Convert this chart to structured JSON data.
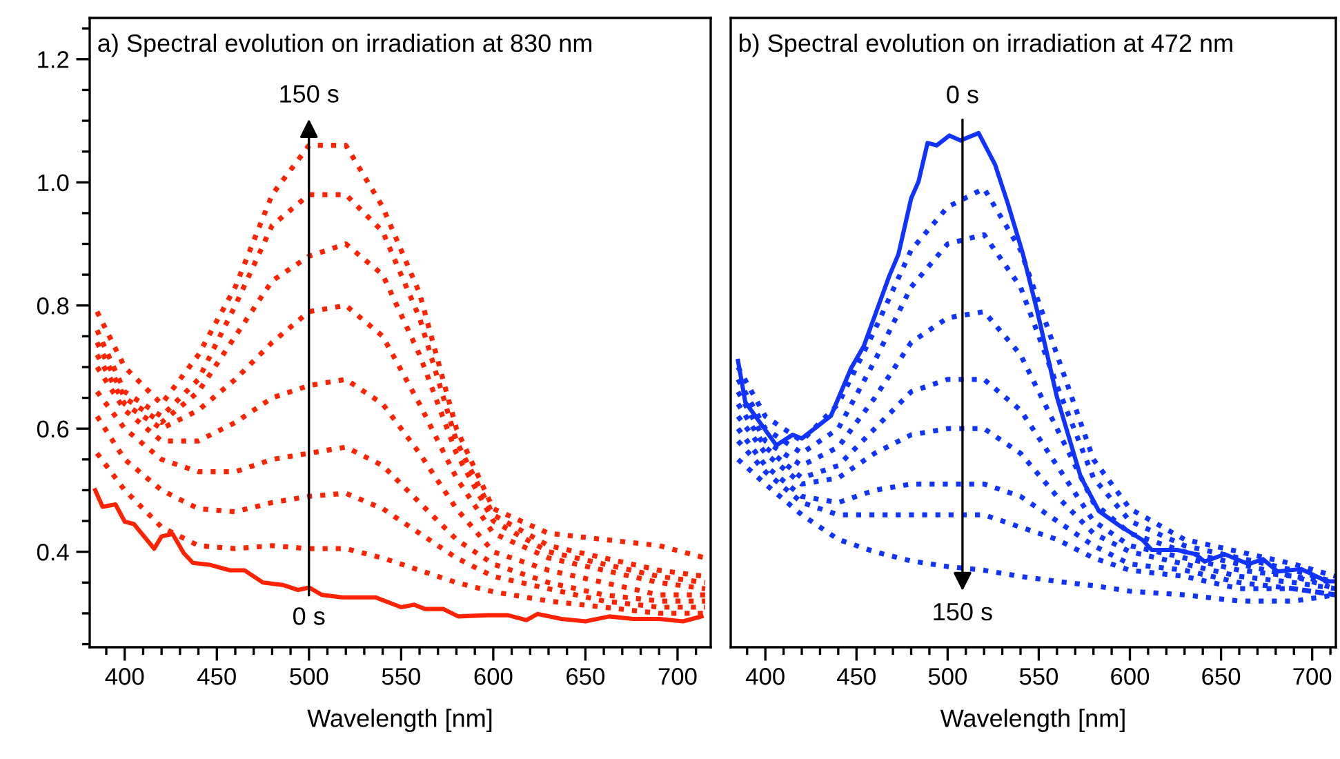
{
  "chart_data": [
    {
      "type": "line",
      "title": "a) Spectral evolution on irradiation at 830 nm",
      "xlabel": "Wavelength [nm]",
      "xlim": [
        381,
        718
      ],
      "ylim": [
        0.245,
        1.267
      ],
      "xticks": [
        {
          "value": 390,
          "label": null
        },
        400,
        {
          "value": 410,
          "label": null
        },
        {
          "value": 420,
          "label": null
        },
        {
          "value": 430,
          "label": null
        },
        {
          "value": 440,
          "label": null
        },
        450,
        {
          "value": 460,
          "label": null
        },
        {
          "value": 470,
          "label": null
        },
        {
          "value": 480,
          "label": null
        },
        {
          "value": 490,
          "label": null
        },
        500,
        {
          "value": 510,
          "label": null
        },
        {
          "value": 520,
          "label": null
        },
        {
          "value": 530,
          "label": null
        },
        {
          "value": 540,
          "label": null
        },
        550,
        {
          "value": 560,
          "label": null
        },
        {
          "value": 570,
          "label": null
        },
        {
          "value": 580,
          "label": null
        },
        {
          "value": 590,
          "label": null
        },
        600,
        {
          "value": 610,
          "label": null
        },
        {
          "value": 620,
          "label": null
        },
        {
          "value": 630,
          "label": null
        },
        {
          "value": 640,
          "label": null
        },
        650,
        {
          "value": 660,
          "label": null
        },
        {
          "value": 670,
          "label": null
        },
        {
          "value": 680,
          "label": null
        },
        {
          "value": 690,
          "label": null
        },
        700,
        {
          "value": 710,
          "label": null
        }
      ],
      "yticks": [
        {
          "value": 0.25,
          "label": null
        },
        {
          "value": 0.3,
          "label": null
        },
        {
          "value": 0.35,
          "label": null
        },
        {
          "value": 0.4,
          "label": "0.4"
        },
        {
          "value": 0.45,
          "label": null
        },
        {
          "value": 0.5,
          "label": null
        },
        {
          "value": 0.55,
          "label": null
        },
        {
          "value": 0.6,
          "label": "0.6"
        },
        {
          "value": 0.65,
          "label": null
        },
        {
          "value": 0.7,
          "label": null
        },
        {
          "value": 0.75,
          "label": null
        },
        {
          "value": 0.8,
          "label": "0.8"
        },
        {
          "value": 0.85,
          "label": null
        },
        {
          "value": 0.9,
          "label": null
        },
        {
          "value": 0.95,
          "label": null
        },
        {
          "value": 1.0,
          "label": "1.0"
        },
        {
          "value": 1.05,
          "label": null
        },
        {
          "value": 1.1,
          "label": null
        },
        {
          "value": 1.15,
          "label": null
        },
        {
          "value": 1.2,
          "label": "1.2"
        },
        {
          "value": 1.25,
          "label": null
        }
      ],
      "grid": false,
      "annotations": [
        "0 s",
        "150 s"
      ],
      "series": [
        {
          "color": "#ff2200",
          "line_style": "solid",
          "x": [
            384,
            388,
            395,
            400,
            405,
            416,
            420,
            426,
            432,
            437,
            446,
            457,
            465,
            475,
            486,
            494,
            500,
            507,
            518,
            536,
            550,
            557,
            563,
            573,
            581,
            597,
            608,
            618,
            624,
            637,
            650,
            663,
            676,
            690,
            703,
            713
          ],
          "values": [
            0.5,
            0.473,
            0.477,
            0.449,
            0.445,
            0.405,
            0.425,
            0.429,
            0.398,
            0.382,
            0.379,
            0.37,
            0.37,
            0.35,
            0.346,
            0.338,
            0.342,
            0.33,
            0.326,
            0.326,
            0.31,
            0.314,
            0.307,
            0.307,
            0.295,
            0.297,
            0.297,
            0.289,
            0.299,
            0.291,
            0.287,
            0.295,
            0.291,
            0.291,
            0.287,
            0.295
          ]
        },
        {
          "color": "#ff2200",
          "line_style": "dotted",
          "x": [
            385,
            400,
            420,
            440,
            460,
            480,
            500,
            520,
            540,
            560,
            580,
            600,
            630,
            660,
            690,
            715
          ],
          "values": [
            0.56,
            0.5,
            0.44,
            0.41,
            0.405,
            0.41,
            0.405,
            0.405,
            0.39,
            0.37,
            0.35,
            0.335,
            0.32,
            0.31,
            0.3,
            0.3
          ]
        },
        {
          "color": "#ff2200",
          "line_style": "dotted",
          "x": [
            385,
            400,
            420,
            440,
            460,
            480,
            500,
            520,
            540,
            560,
            580,
            600,
            630,
            660,
            690,
            715
          ],
          "values": [
            0.62,
            0.55,
            0.5,
            0.47,
            0.465,
            0.48,
            0.49,
            0.495,
            0.47,
            0.43,
            0.39,
            0.36,
            0.34,
            0.32,
            0.31,
            0.31
          ]
        },
        {
          "color": "#ff2200",
          "line_style": "dotted",
          "x": [
            385,
            400,
            420,
            440,
            460,
            480,
            500,
            520,
            540,
            560,
            580,
            600,
            630,
            660,
            690,
            715
          ],
          "values": [
            0.66,
            0.6,
            0.55,
            0.53,
            0.53,
            0.55,
            0.56,
            0.57,
            0.54,
            0.48,
            0.42,
            0.38,
            0.35,
            0.33,
            0.32,
            0.32
          ]
        },
        {
          "color": "#ff2200",
          "line_style": "dotted",
          "x": [
            385,
            400,
            420,
            440,
            460,
            480,
            500,
            520,
            540,
            560,
            580,
            600,
            630,
            660,
            690,
            715
          ],
          "values": [
            0.7,
            0.63,
            0.58,
            0.58,
            0.61,
            0.65,
            0.67,
            0.68,
            0.64,
            0.56,
            0.47,
            0.4,
            0.37,
            0.35,
            0.33,
            0.33
          ]
        },
        {
          "color": "#ff2200",
          "line_style": "dotted",
          "x": [
            385,
            400,
            420,
            440,
            460,
            480,
            500,
            520,
            540,
            560,
            580,
            600,
            630,
            660,
            690,
            715
          ],
          "values": [
            0.72,
            0.64,
            0.6,
            0.63,
            0.68,
            0.74,
            0.79,
            0.8,
            0.75,
            0.64,
            0.52,
            0.43,
            0.39,
            0.37,
            0.35,
            0.34
          ]
        },
        {
          "color": "#ff2200",
          "line_style": "dotted",
          "x": [
            385,
            400,
            420,
            440,
            460,
            480,
            500,
            520,
            540,
            560,
            580,
            600,
            630,
            660,
            690,
            715
          ],
          "values": [
            0.74,
            0.65,
            0.61,
            0.66,
            0.75,
            0.84,
            0.88,
            0.9,
            0.85,
            0.72,
            0.56,
            0.45,
            0.4,
            0.38,
            0.36,
            0.35
          ]
        },
        {
          "color": "#ff2200",
          "line_style": "dotted",
          "x": [
            385,
            400,
            420,
            440,
            460,
            480,
            500,
            520,
            540,
            560,
            580,
            600,
            630,
            660,
            690,
            715
          ],
          "values": [
            0.76,
            0.66,
            0.62,
            0.68,
            0.8,
            0.93,
            0.98,
            0.98,
            0.92,
            0.78,
            0.58,
            0.46,
            0.41,
            0.39,
            0.37,
            0.36
          ]
        },
        {
          "color": "#ff2200",
          "line_style": "dotted",
          "x": [
            385,
            400,
            420,
            440,
            460,
            480,
            500,
            520,
            540,
            560,
            580,
            600,
            630,
            660,
            690,
            715
          ],
          "values": [
            0.79,
            0.7,
            0.64,
            0.72,
            0.83,
            0.98,
            1.06,
            1.06,
            0.96,
            0.82,
            0.6,
            0.47,
            0.43,
            0.42,
            0.41,
            0.39
          ]
        }
      ]
    },
    {
      "type": "line",
      "title": "b) Spectral evolution on irradiation at 472 nm",
      "xlabel": "Wavelength [nm]",
      "xlim": [
        381,
        713
      ],
      "ylim": [
        0.245,
        1.267
      ],
      "tick_labels": "x",
      "xticks": [
        {
          "value": 390,
          "label": null
        },
        400,
        {
          "value": 410,
          "label": null
        },
        {
          "value": 420,
          "label": null
        },
        {
          "value": 430,
          "label": null
        },
        {
          "value": 440,
          "label": null
        },
        450,
        {
          "value": 460,
          "label": null
        },
        {
          "value": 470,
          "label": null
        },
        {
          "value": 480,
          "label": null
        },
        {
          "value": 490,
          "label": null
        },
        500,
        {
          "value": 510,
          "label": null
        },
        {
          "value": 520,
          "label": null
        },
        {
          "value": 530,
          "label": null
        },
        {
          "value": 540,
          "label": null
        },
        550,
        {
          "value": 560,
          "label": null
        },
        {
          "value": 570,
          "label": null
        },
        {
          "value": 580,
          "label": null
        },
        {
          "value": 590,
          "label": null
        },
        600,
        {
          "value": 610,
          "label": null
        },
        {
          "value": 620,
          "label": null
        },
        {
          "value": 630,
          "label": null
        },
        {
          "value": 640,
          "label": null
        },
        650,
        {
          "value": 660,
          "label": null
        },
        {
          "value": 670,
          "label": null
        },
        {
          "value": 680,
          "label": null
        },
        {
          "value": 690,
          "label": null
        },
        700,
        {
          "value": 710,
          "label": null
        }
      ],
      "grid": false,
      "annotations": [
        "0 s",
        "150 s"
      ],
      "series": [
        {
          "color": "#1133ff",
          "line_style": "solid",
          "x": [
            385,
            389,
            406,
            415,
            420,
            436,
            447,
            454,
            468,
            473,
            480,
            484,
            489,
            494,
            501,
            507,
            517,
            526,
            533,
            541,
            549,
            560,
            573,
            583,
            594,
            607,
            612,
            626,
            636,
            641,
            652,
            665,
            673,
            681,
            694,
            708,
            713
          ],
          "values": [
            0.71,
            0.643,
            0.573,
            0.59,
            0.584,
            0.621,
            0.698,
            0.734,
            0.848,
            0.883,
            0.974,
            1.001,
            1.064,
            1.06,
            1.076,
            1.068,
            1.08,
            1.029,
            0.966,
            0.887,
            0.793,
            0.651,
            0.522,
            0.466,
            0.443,
            0.419,
            0.403,
            0.403,
            0.396,
            0.384,
            0.396,
            0.38,
            0.388,
            0.368,
            0.372,
            0.352,
            0.352
          ]
        },
        {
          "color": "#1133ff",
          "line_style": "dotted",
          "x": [
            385,
            400,
            420,
            440,
            460,
            480,
            500,
            520,
            540,
            560,
            580,
            600,
            630,
            660,
            690,
            713
          ],
          "values": [
            0.7,
            0.62,
            0.58,
            0.64,
            0.76,
            0.89,
            0.96,
            0.99,
            0.89,
            0.72,
            0.55,
            0.47,
            0.42,
            0.4,
            0.38,
            0.36
          ]
        },
        {
          "color": "#1133ff",
          "line_style": "dotted",
          "x": [
            385,
            400,
            420,
            440,
            460,
            480,
            500,
            520,
            540,
            560,
            580,
            600,
            630,
            660,
            690,
            713
          ],
          "values": [
            0.68,
            0.6,
            0.56,
            0.6,
            0.71,
            0.83,
            0.9,
            0.915,
            0.83,
            0.67,
            0.52,
            0.45,
            0.41,
            0.39,
            0.37,
            0.35
          ]
        },
        {
          "color": "#1133ff",
          "line_style": "dotted",
          "x": [
            385,
            400,
            420,
            440,
            460,
            480,
            500,
            520,
            540,
            560,
            580,
            600,
            630,
            660,
            690,
            713
          ],
          "values": [
            0.66,
            0.58,
            0.54,
            0.57,
            0.65,
            0.74,
            0.78,
            0.79,
            0.72,
            0.6,
            0.48,
            0.43,
            0.4,
            0.38,
            0.36,
            0.35
          ]
        },
        {
          "color": "#1133ff",
          "line_style": "dotted",
          "x": [
            385,
            400,
            420,
            440,
            460,
            480,
            500,
            520,
            540,
            560,
            580,
            600,
            630,
            660,
            690,
            713
          ],
          "values": [
            0.64,
            0.57,
            0.52,
            0.54,
            0.6,
            0.66,
            0.68,
            0.68,
            0.63,
            0.54,
            0.45,
            0.41,
            0.39,
            0.37,
            0.36,
            0.34
          ]
        },
        {
          "color": "#1133ff",
          "line_style": "dotted",
          "x": [
            385,
            400,
            420,
            440,
            460,
            480,
            500,
            520,
            540,
            560,
            580,
            600,
            630,
            660,
            690,
            713
          ],
          "values": [
            0.62,
            0.56,
            0.51,
            0.52,
            0.56,
            0.59,
            0.6,
            0.6,
            0.56,
            0.49,
            0.43,
            0.4,
            0.38,
            0.36,
            0.35,
            0.34
          ]
        },
        {
          "color": "#1133ff",
          "line_style": "dotted",
          "x": [
            385,
            400,
            420,
            440,
            460,
            480,
            500,
            520,
            540,
            560,
            580,
            600,
            630,
            660,
            690,
            713
          ],
          "values": [
            0.6,
            0.54,
            0.49,
            0.48,
            0.5,
            0.51,
            0.51,
            0.51,
            0.49,
            0.45,
            0.41,
            0.38,
            0.37,
            0.35,
            0.34,
            0.33
          ]
        },
        {
          "color": "#1133ff",
          "line_style": "dotted",
          "x": [
            385,
            400,
            420,
            440,
            460,
            480,
            500,
            520,
            540,
            560,
            580,
            600,
            630,
            660,
            690,
            713
          ],
          "values": [
            0.58,
            0.53,
            0.48,
            0.46,
            0.46,
            0.46,
            0.46,
            0.46,
            0.44,
            0.42,
            0.39,
            0.37,
            0.36,
            0.34,
            0.34,
            0.33
          ]
        },
        {
          "color": "#1133ff",
          "line_style": "dotted",
          "x": [
            385,
            400,
            420,
            440,
            460,
            480,
            500,
            520,
            540,
            560,
            580,
            600,
            630,
            660,
            690,
            713
          ],
          "values": [
            0.55,
            0.51,
            0.46,
            0.42,
            0.4,
            0.385,
            0.376,
            0.37,
            0.36,
            0.352,
            0.345,
            0.336,
            0.33,
            0.32,
            0.32,
            0.33
          ]
        }
      ]
    }
  ]
}
